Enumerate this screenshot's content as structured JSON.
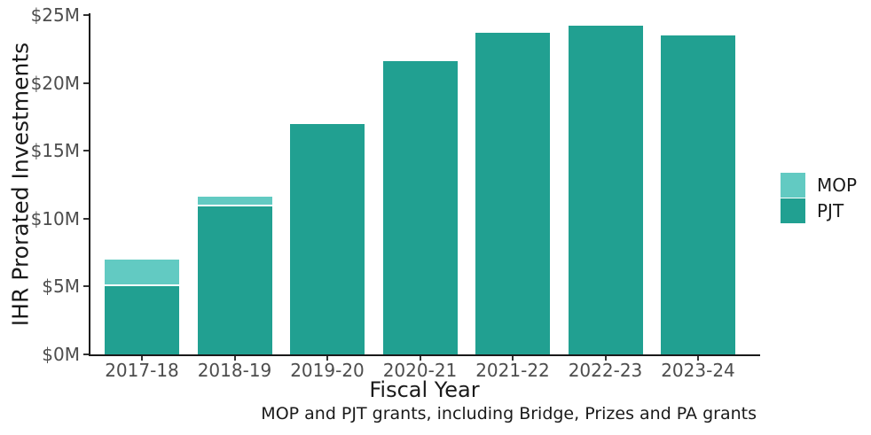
{
  "chart_data": {
    "type": "bar",
    "stacked": true,
    "title": "",
    "xlabel": "Fiscal Year",
    "ylabel": "IHR Prorated Investments",
    "caption": "MOP and PJT grants, including Bridge, Prizes and PA grants",
    "categories": [
      "2017-18",
      "2018-19",
      "2019-20",
      "2020-21",
      "2021-22",
      "2022-23",
      "2023-24"
    ],
    "series": [
      {
        "name": "PJT",
        "color": "#21a091",
        "values": [
          5.0,
          10.9,
          17.0,
          21.6,
          23.7,
          24.2,
          23.5
        ]
      },
      {
        "name": "MOP",
        "color": "#62cac2",
        "values": [
          2.0,
          0.7,
          0,
          0,
          0,
          0,
          0
        ]
      }
    ],
    "totals": [
      7.0,
      11.6,
      17.0,
      21.6,
      23.7,
      24.2,
      23.5
    ],
    "ylim": [
      0,
      25
    ],
    "ytick_values": [
      0,
      5,
      10,
      15,
      20,
      25
    ],
    "ytick_labels": [
      "$0M",
      "$5M",
      "$10M",
      "$15M",
      "$20M",
      "$25M"
    ],
    "grid": false,
    "legend_position": "right",
    "legend": [
      {
        "label": "MOP",
        "color": "#62cac2"
      },
      {
        "label": "PJT",
        "color": "#21a091"
      }
    ],
    "segment_divider_color": "#ffffff"
  },
  "colors": {
    "background": "#ffffff",
    "axis_line": "#1a1a1a",
    "tick_mark": "#333333",
    "tick_label": "#4d4d4d",
    "text": "#1a1a1a",
    "pjt": "#21a091",
    "mop": "#62cac2"
  }
}
